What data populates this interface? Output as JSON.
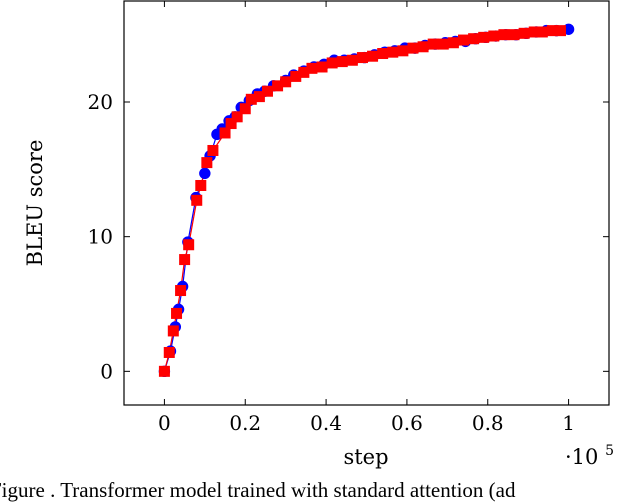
{
  "caption": "Figure . Transformer model trained with standard attention (ad",
  "chart_data": {
    "type": "line",
    "xlabel": "step",
    "ylabel": "BLEU score",
    "x_scale_label": "·10",
    "x_scale_exponent": "5",
    "xlim": [
      -0.1,
      1.1
    ],
    "ylim": [
      -2.5,
      27.5
    ],
    "xticks": [
      0,
      0.2,
      0.4,
      0.6,
      0.8,
      1
    ],
    "xtick_labels": [
      "0",
      "0.2",
      "0.4",
      "0.6",
      "0.8",
      "1"
    ],
    "yticks": [
      0,
      10,
      20
    ],
    "ytick_labels": [
      "0",
      "10",
      "20"
    ],
    "grid": false,
    "legend": "none",
    "series": [
      {
        "color": "#0000ff",
        "marker": "circle",
        "x": [
          0,
          0.015,
          0.027,
          0.035,
          0.045,
          0.058,
          0.078,
          0.1,
          0.113,
          0.13,
          0.143,
          0.16,
          0.175,
          0.19,
          0.21,
          0.23,
          0.248,
          0.27,
          0.3,
          0.32,
          0.345,
          0.37,
          0.395,
          0.42,
          0.445,
          0.47,
          0.495,
          0.52,
          0.545,
          0.57,
          0.595,
          0.62,
          0.645,
          0.67,
          0.695,
          0.72,
          0.745,
          0.77,
          0.795,
          0.82,
          0.845,
          0.87,
          0.895,
          0.92,
          0.945,
          0.97,
          1
        ],
        "values": [
          0,
          1.5,
          3.3,
          4.6,
          6.3,
          9.6,
          12.9,
          14.7,
          16.0,
          17.6,
          18.0,
          18.6,
          18.9,
          19.6,
          20.1,
          20.6,
          20.8,
          21.2,
          21.6,
          22.0,
          22.3,
          22.6,
          22.8,
          23.1,
          23.1,
          23.2,
          23.3,
          23.5,
          23.7,
          23.8,
          24.0,
          24.0,
          24.2,
          24.3,
          24.4,
          24.5,
          24.5,
          24.7,
          24.8,
          24.9,
          25.0,
          25.0,
          25.1,
          25.2,
          25.3,
          25.3,
          25.4
        ]
      },
      {
        "color": "#ff0000",
        "marker": "square",
        "x": [
          0,
          0.012,
          0.022,
          0.03,
          0.04,
          0.05,
          0.06,
          0.08,
          0.09,
          0.105,
          0.12,
          0.15,
          0.165,
          0.18,
          0.2,
          0.215,
          0.235,
          0.255,
          0.28,
          0.3,
          0.325,
          0.345,
          0.365,
          0.39,
          0.415,
          0.44,
          0.465,
          0.49,
          0.515,
          0.54,
          0.565,
          0.59,
          0.615,
          0.64,
          0.665,
          0.69,
          0.715,
          0.74,
          0.765,
          0.79,
          0.815,
          0.84,
          0.865,
          0.89,
          0.915,
          0.935,
          0.96,
          0.98
        ],
        "values": [
          0,
          1.4,
          3.0,
          4.3,
          6.0,
          8.3,
          9.4,
          12.7,
          13.8,
          15.5,
          16.4,
          17.7,
          18.4,
          18.9,
          19.5,
          20.2,
          20.4,
          20.8,
          21.2,
          21.5,
          21.9,
          22.2,
          22.5,
          22.6,
          22.9,
          23.0,
          23.1,
          23.3,
          23.4,
          23.6,
          23.7,
          23.8,
          24.0,
          24.1,
          24.3,
          24.3,
          24.4,
          24.6,
          24.7,
          24.8,
          24.9,
          25.0,
          25.0,
          25.1,
          25.2,
          25.2,
          25.3,
          25.3
        ]
      }
    ]
  }
}
